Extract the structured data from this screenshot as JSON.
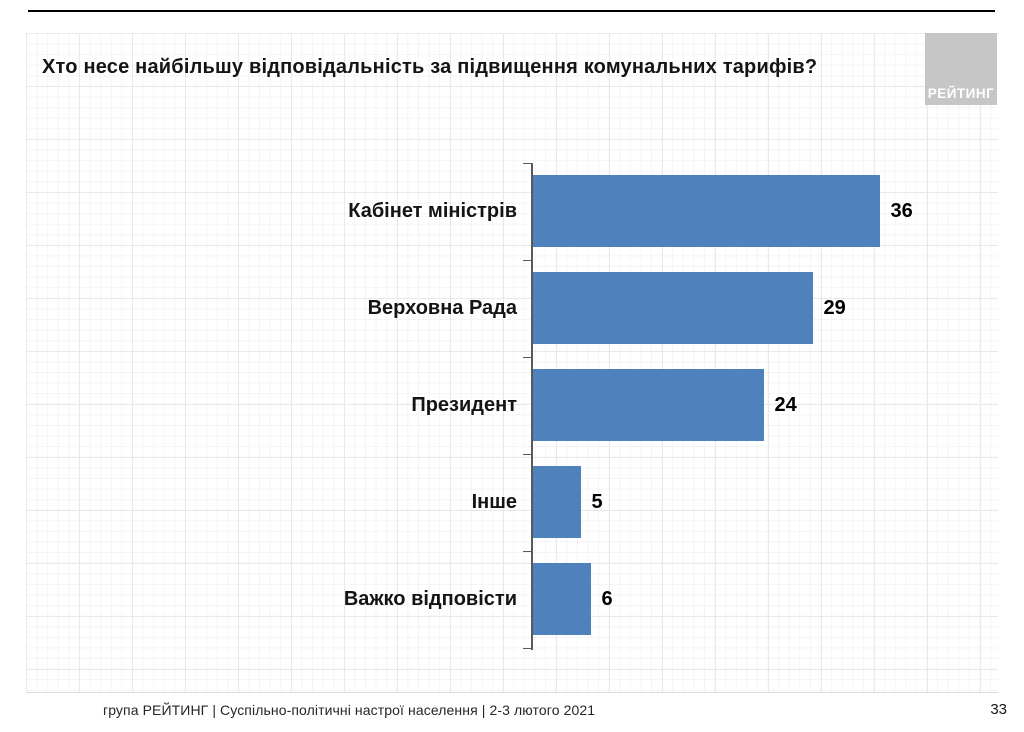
{
  "slide": {
    "title": "Хто несе найбільшу відповідальність за підвищення комунальних тарифів?",
    "logo_text": "РЕЙТИНГ",
    "footer": "група РЕЙТИНГ | Суспільно-політичні настрої населення  | 2-3 лютого 2021",
    "page_number": "33"
  },
  "colors": {
    "bar": "#4F81BD",
    "axis": "#595959",
    "logo_bg": "#c6c6c6",
    "logo_text": "#ffffff",
    "title_text": "#141414"
  },
  "chart_data": {
    "type": "bar",
    "orientation": "horizontal",
    "title": "Хто несе найбільшу відповідальність за підвищення комунальних тарифів?",
    "categories": [
      "Кабінет міністрів",
      "Верховна Рада",
      "Президент",
      "Інше",
      "Важко відповісти"
    ],
    "values": [
      36,
      29,
      24,
      5,
      6
    ],
    "xlabel": "",
    "ylabel": "",
    "xlim": [
      0,
      36
    ],
    "value_labels_shown": true,
    "legend": "none",
    "grid": "faint background graph-paper grid",
    "bar_color": "#4F81BD"
  }
}
